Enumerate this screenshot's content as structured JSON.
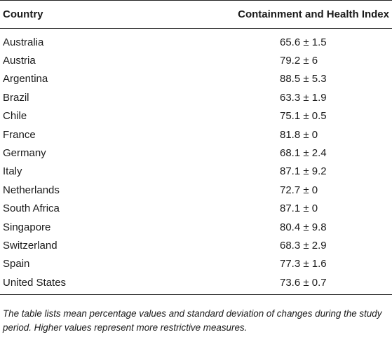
{
  "table": {
    "header": {
      "col1": "Country",
      "col2": "Containment and Health Index"
    },
    "rows": [
      {
        "country": "Australia",
        "value": "65.6 ± 1.5"
      },
      {
        "country": "Austria",
        "value": "79.2 ± 6"
      },
      {
        "country": "Argentina",
        "value": "88.5 ± 5.3"
      },
      {
        "country": "Brazil",
        "value": "63.3 ± 1.9"
      },
      {
        "country": "Chile",
        "value": "75.1 ± 0.5"
      },
      {
        "country": "France",
        "value": "81.8 ± 0"
      },
      {
        "country": "Germany",
        "value": "68.1 ± 2.4"
      },
      {
        "country": "Italy",
        "value": "87.1 ± 9.2"
      },
      {
        "country": "Netherlands",
        "value": "72.7 ± 0"
      },
      {
        "country": "South Africa",
        "value": "87.1 ± 0"
      },
      {
        "country": "Singapore",
        "value": "80.4 ± 9.8"
      },
      {
        "country": "Switzerland",
        "value": "68.3 ± 2.9"
      },
      {
        "country": "Spain",
        "value": "77.3 ± 1.6"
      },
      {
        "country": "United States",
        "value": "73.6 ± 0.7"
      }
    ],
    "footnote": "The table lists mean percentage values and standard deviation of changes during the study period. Higher values represent more restrictive measures."
  }
}
